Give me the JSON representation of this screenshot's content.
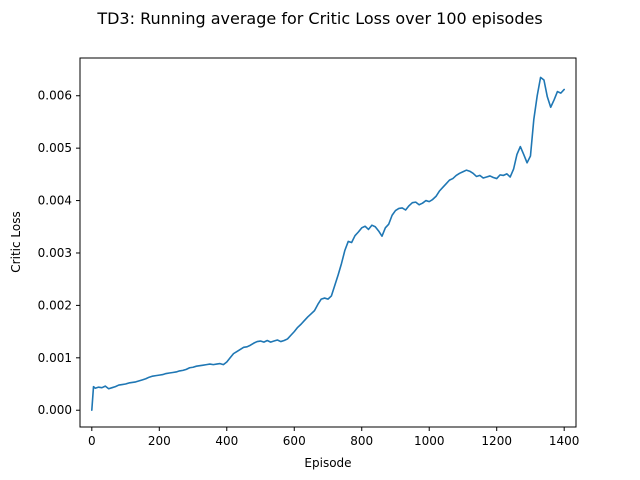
{
  "chart_data": {
    "type": "line",
    "title": "TD3: Running average for Critic Loss over 100 episodes",
    "xlabel": "Episode",
    "ylabel": "Critic Loss",
    "xlim": [
      -35,
      1435
    ],
    "ylim": [
      -0.00032,
      0.00672
    ],
    "xticks": [
      0,
      200,
      400,
      600,
      800,
      1000,
      1200,
      1400
    ],
    "yticks": [
      0.0,
      0.001,
      0.002,
      0.003,
      0.004,
      0.005,
      0.006
    ],
    "xtick_labels": [
      "0",
      "200",
      "400",
      "600",
      "800",
      "1000",
      "1200",
      "1400"
    ],
    "ytick_labels": [
      "0.000",
      "0.001",
      "0.002",
      "0.003",
      "0.004",
      "0.005",
      "0.006"
    ],
    "grid": false,
    "series": [
      {
        "color": "#1f77b4",
        "x": [
          0,
          5,
          10,
          20,
          30,
          40,
          50,
          60,
          70,
          80,
          90,
          100,
          110,
          120,
          130,
          140,
          150,
          160,
          170,
          180,
          190,
          200,
          210,
          220,
          230,
          240,
          250,
          260,
          270,
          280,
          290,
          300,
          310,
          320,
          330,
          340,
          350,
          360,
          370,
          380,
          390,
          400,
          410,
          420,
          430,
          440,
          450,
          460,
          470,
          480,
          490,
          500,
          510,
          520,
          530,
          540,
          550,
          560,
          570,
          580,
          590,
          600,
          610,
          620,
          630,
          640,
          650,
          660,
          670,
          680,
          690,
          700,
          710,
          720,
          730,
          740,
          750,
          760,
          770,
          780,
          790,
          800,
          810,
          820,
          830,
          840,
          850,
          860,
          870,
          880,
          890,
          900,
          910,
          920,
          930,
          940,
          950,
          960,
          970,
          980,
          990,
          1000,
          1010,
          1020,
          1030,
          1040,
          1050,
          1060,
          1070,
          1080,
          1090,
          1100,
          1110,
          1120,
          1130,
          1140,
          1150,
          1160,
          1170,
          1180,
          1190,
          1200,
          1210,
          1220,
          1230,
          1240,
          1250,
          1260,
          1270,
          1280,
          1290,
          1300,
          1310,
          1320,
          1330,
          1340,
          1350,
          1360,
          1370,
          1380,
          1390,
          1400
        ],
        "y": [
          0.0,
          0.00045,
          0.00042,
          0.00044,
          0.00043,
          0.00046,
          0.00041,
          0.00043,
          0.00045,
          0.00048,
          0.00049,
          0.0005,
          0.00052,
          0.00053,
          0.00054,
          0.00056,
          0.00058,
          0.0006,
          0.00063,
          0.00065,
          0.00066,
          0.00067,
          0.00068,
          0.0007,
          0.00071,
          0.00072,
          0.00073,
          0.00075,
          0.00076,
          0.00078,
          0.00081,
          0.00082,
          0.00084,
          0.00085,
          0.00086,
          0.00087,
          0.00088,
          0.00087,
          0.00088,
          0.00089,
          0.00087,
          0.00092,
          0.001,
          0.00108,
          0.00112,
          0.00116,
          0.0012,
          0.00121,
          0.00124,
          0.00128,
          0.00131,
          0.00132,
          0.0013,
          0.00133,
          0.0013,
          0.00132,
          0.00134,
          0.00131,
          0.00133,
          0.00136,
          0.00143,
          0.0015,
          0.00158,
          0.00164,
          0.00171,
          0.00178,
          0.00184,
          0.0019,
          0.00202,
          0.00212,
          0.00214,
          0.00212,
          0.00218,
          0.00238,
          0.00258,
          0.0028,
          0.00305,
          0.00322,
          0.0032,
          0.00333,
          0.0034,
          0.00348,
          0.00351,
          0.00345,
          0.00353,
          0.0035,
          0.00342,
          0.00332,
          0.00348,
          0.00355,
          0.00372,
          0.00381,
          0.00385,
          0.00386,
          0.00382,
          0.0039,
          0.00396,
          0.00397,
          0.00392,
          0.00395,
          0.004,
          0.00398,
          0.00402,
          0.00408,
          0.00418,
          0.00425,
          0.00432,
          0.00439,
          0.00442,
          0.00448,
          0.00452,
          0.00455,
          0.00458,
          0.00456,
          0.00452,
          0.00446,
          0.00448,
          0.00443,
          0.00445,
          0.00447,
          0.00444,
          0.00442,
          0.00449,
          0.00448,
          0.00451,
          0.00445,
          0.0046,
          0.00488,
          0.00503,
          0.00488,
          0.00472,
          0.00485,
          0.00555,
          0.006,
          0.00635,
          0.0063,
          0.00598,
          0.00578,
          0.00592,
          0.00608,
          0.00605,
          0.00612
        ]
      }
    ]
  }
}
